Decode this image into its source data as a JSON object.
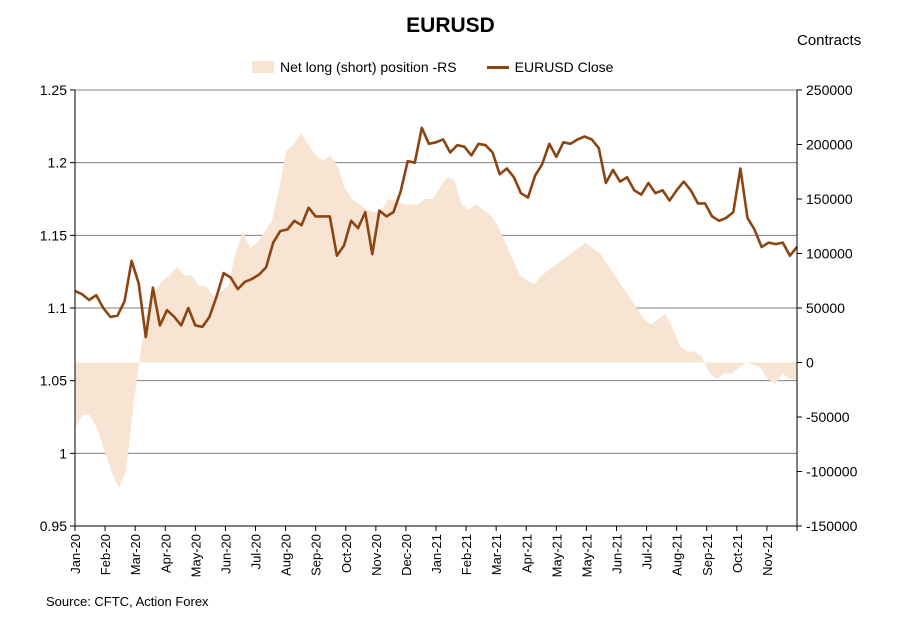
{
  "chart_data": {
    "type": "line",
    "title": "EURUSD",
    "right_axis_label": "Contracts",
    "source": "Source: CFTC, Action Forex",
    "legend_position": "top-center",
    "x_tick_labels": [
      "Jan-20",
      "Feb-20",
      "Mar-20",
      "Apr-20",
      "May-20",
      "Jun-20",
      "Jul-20",
      "Aug-20",
      "Sep-20",
      "Oct-20",
      "Nov-20",
      "Dec-20",
      "Jan-21",
      "Feb-21",
      "Mar-21",
      "Apr-21",
      "May-21",
      "May-21",
      "Jun-21",
      "Jul-21",
      "Aug-21",
      "Sep-21",
      "Oct-21",
      "Nov-21"
    ],
    "y_left": {
      "ylim": [
        0.95,
        1.25
      ],
      "ticks": [
        "0.95",
        "1",
        "1.05",
        "1.1",
        "1.15",
        "1.2",
        "1.25"
      ]
    },
    "y_right": {
      "ylim": [
        -150000,
        250000
      ],
      "ticks": [
        "-150000",
        "-100000",
        "-50000",
        "0",
        "50000",
        "100000",
        "150000",
        "200000",
        "250000"
      ]
    },
    "grid": "horizontal",
    "colors": {
      "area": "#f8e4d2",
      "line": "#8b4513",
      "grid": "#808080"
    },
    "series": [
      {
        "name": "Net long (short) position -RS",
        "axis": "right",
        "style": "area",
        "values": [
          -60000,
          -48000,
          -48000,
          -60000,
          -80000,
          -100000,
          -115000,
          -100000,
          -40000,
          10000,
          50000,
          65000,
          75000,
          80000,
          88000,
          80000,
          80000,
          70000,
          70000,
          60000,
          65000,
          70000,
          100000,
          120000,
          105000,
          110000,
          120000,
          130000,
          160000,
          195000,
          200000,
          210000,
          200000,
          190000,
          185000,
          190000,
          180000,
          160000,
          150000,
          145000,
          140000,
          138000,
          140000,
          150000,
          148000,
          145000,
          145000,
          145000,
          150000,
          150000,
          160000,
          170000,
          168000,
          145000,
          140000,
          145000,
          140000,
          135000,
          125000,
          110000,
          95000,
          80000,
          75000,
          72000,
          80000,
          85000,
          90000,
          95000,
          100000,
          105000,
          110000,
          105000,
          100000,
          90000,
          80000,
          70000,
          60000,
          50000,
          40000,
          35000,
          40000,
          45000,
          30000,
          15000,
          10000,
          10000,
          5000,
          -10000,
          -15000,
          -10000,
          -10000,
          -5000,
          0,
          -2000,
          -5000,
          -15000,
          -20000,
          -10000,
          -15000,
          -15000
        ],
        "start": "2020-01-07",
        "interval_days": 7
      },
      {
        "name": "EURUSD Close",
        "axis": "left",
        "style": "line",
        "values": [
          1.1117,
          1.1095,
          1.1055,
          1.1088,
          1.1,
          1.0938,
          1.0948,
          1.1045,
          1.1325,
          1.117,
          1.08,
          1.114,
          1.088,
          1.0985,
          1.094,
          1.088,
          1.1,
          1.088,
          1.087,
          1.094,
          1.108,
          1.124,
          1.121,
          1.113,
          1.118,
          1.12,
          1.123,
          1.128,
          1.145,
          1.153,
          1.154,
          1.16,
          1.157,
          1.169,
          1.163,
          1.163,
          1.163,
          1.136,
          1.143,
          1.16,
          1.155,
          1.166,
          1.137,
          1.167,
          1.163,
          1.166,
          1.18,
          1.201,
          1.2,
          1.224,
          1.213,
          1.214,
          1.216,
          1.207,
          1.212,
          1.211,
          1.205,
          1.213,
          1.212,
          1.207,
          1.192,
          1.196,
          1.19,
          1.179,
          1.176,
          1.191,
          1.199,
          1.213,
          1.204,
          1.214,
          1.213,
          1.216,
          1.218,
          1.216,
          1.21,
          1.186,
          1.195,
          1.187,
          1.19,
          1.181,
          1.178,
          1.186,
          1.179,
          1.181,
          1.174,
          1.181,
          1.187,
          1.181,
          1.172,
          1.172,
          1.163,
          1.16,
          1.162,
          1.166,
          1.196,
          1.162,
          1.154,
          1.142,
          1.145,
          1.144,
          1.145,
          1.136,
          1.142
        ]
      }
    ]
  },
  "legend": {
    "area_label": "Net long (short) position -RS",
    "line_label": "EURUSD Close"
  }
}
